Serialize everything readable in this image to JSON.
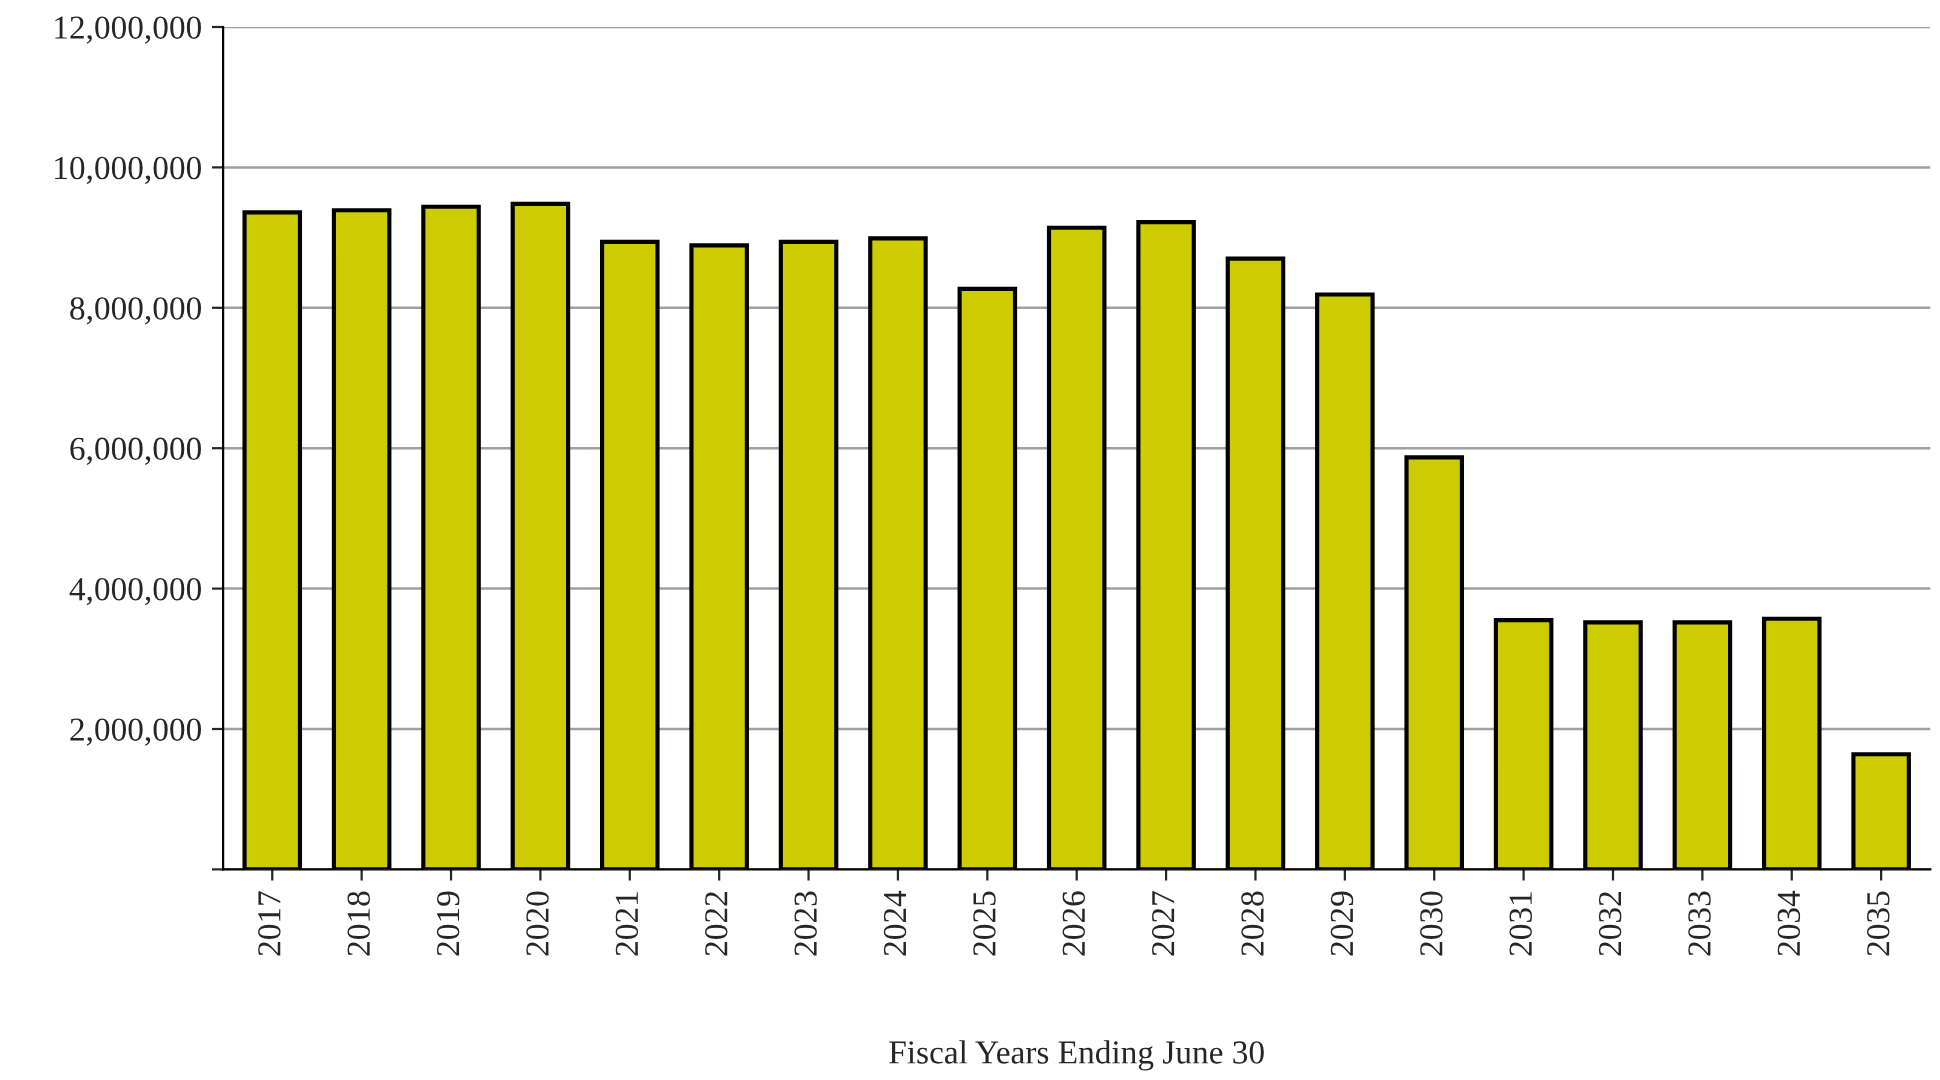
{
  "chart_data": {
    "type": "bar",
    "xlabel": "Fiscal Years Ending June 30",
    "categories": [
      "2017",
      "2018",
      "2019",
      "2020",
      "2021",
      "2022",
      "2023",
      "2024",
      "2025",
      "2026",
      "2027",
      "2028",
      "2029",
      "2030",
      "2031",
      "2032",
      "2033",
      "2034",
      "2035"
    ],
    "values": [
      9360000,
      9390000,
      9440000,
      9480000,
      8940000,
      8890000,
      8940000,
      8990000,
      8270000,
      9140000,
      9220000,
      8700000,
      8190000,
      5870000,
      3550000,
      3520000,
      3520000,
      3570000,
      1640000
    ],
    "color": "#cccc00",
    "ylim": [
      0,
      12000000
    ],
    "yticks": [
      {
        "value": 0,
        "label": null
      },
      {
        "value": 2000000,
        "label": "2,000,000"
      },
      {
        "value": 4000000,
        "label": "4,000,000"
      },
      {
        "value": 6000000,
        "label": "6,000,000"
      },
      {
        "value": 8000000,
        "label": "8,000,000"
      },
      {
        "value": 10000000,
        "label": "10,000,000"
      },
      {
        "value": 12000000,
        "label": "12,000,000"
      }
    ],
    "grid": "y"
  }
}
